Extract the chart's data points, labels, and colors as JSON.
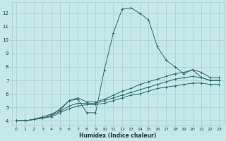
{
  "xlabel": "Humidex (Indice chaleur)",
  "background_color": "#c5e8e8",
  "grid_color": "#aacccc",
  "line_color": "#2d6b6b",
  "xlim": [
    -0.5,
    23.5
  ],
  "ylim": [
    3.7,
    12.8
  ],
  "xticks": [
    0,
    1,
    2,
    3,
    4,
    5,
    6,
    7,
    8,
    9,
    10,
    11,
    12,
    13,
    14,
    15,
    16,
    17,
    18,
    19,
    20,
    21,
    22,
    23
  ],
  "yticks": [
    4,
    5,
    6,
    7,
    8,
    9,
    10,
    11,
    12
  ],
  "series": [
    {
      "x": [
        0,
        1,
        2,
        3,
        4,
        5,
        6,
        7,
        8,
        9,
        10,
        11,
        12,
        13,
        14,
        15,
        16,
        17,
        18,
        19,
        20,
        21,
        22,
        23
      ],
      "y": [
        4.0,
        4.0,
        4.1,
        4.3,
        4.5,
        4.8,
        5.5,
        5.6,
        4.6,
        4.6,
        7.8,
        10.5,
        12.3,
        12.4,
        12.0,
        11.5,
        9.5,
        8.5,
        8.0,
        7.5,
        7.8,
        7.2,
        7.0,
        7.0
      ]
    },
    {
      "x": [
        0,
        1,
        2,
        3,
        4,
        5,
        6,
        7,
        8,
        9,
        10,
        11,
        12,
        13,
        14,
        15,
        16,
        17,
        18,
        19,
        20,
        21,
        22,
        23
      ],
      "y": [
        4.0,
        4.0,
        4.1,
        4.2,
        4.4,
        4.9,
        5.5,
        5.7,
        5.4,
        5.4,
        5.6,
        5.9,
        6.2,
        6.4,
        6.7,
        6.9,
        7.1,
        7.3,
        7.5,
        7.6,
        7.8,
        7.6,
        7.2,
        7.2
      ]
    },
    {
      "x": [
        0,
        1,
        2,
        3,
        4,
        5,
        6,
        7,
        8,
        9,
        10,
        11,
        12,
        13,
        14,
        15,
        16,
        17,
        18,
        19,
        20,
        21,
        22,
        23
      ],
      "y": [
        4.0,
        4.0,
        4.1,
        4.2,
        4.4,
        4.7,
        5.1,
        5.3,
        5.3,
        5.3,
        5.5,
        5.7,
        5.9,
        6.1,
        6.3,
        6.5,
        6.7,
        6.9,
        7.1,
        7.2,
        7.3,
        7.2,
        7.0,
        7.0
      ]
    },
    {
      "x": [
        0,
        1,
        2,
        3,
        4,
        5,
        6,
        7,
        8,
        9,
        10,
        11,
        12,
        13,
        14,
        15,
        16,
        17,
        18,
        19,
        20,
        21,
        22,
        23
      ],
      "y": [
        4.0,
        4.0,
        4.1,
        4.2,
        4.3,
        4.6,
        4.9,
        5.1,
        5.2,
        5.2,
        5.3,
        5.5,
        5.7,
        5.9,
        6.0,
        6.2,
        6.4,
        6.5,
        6.6,
        6.7,
        6.8,
        6.8,
        6.7,
        6.7
      ]
    }
  ]
}
